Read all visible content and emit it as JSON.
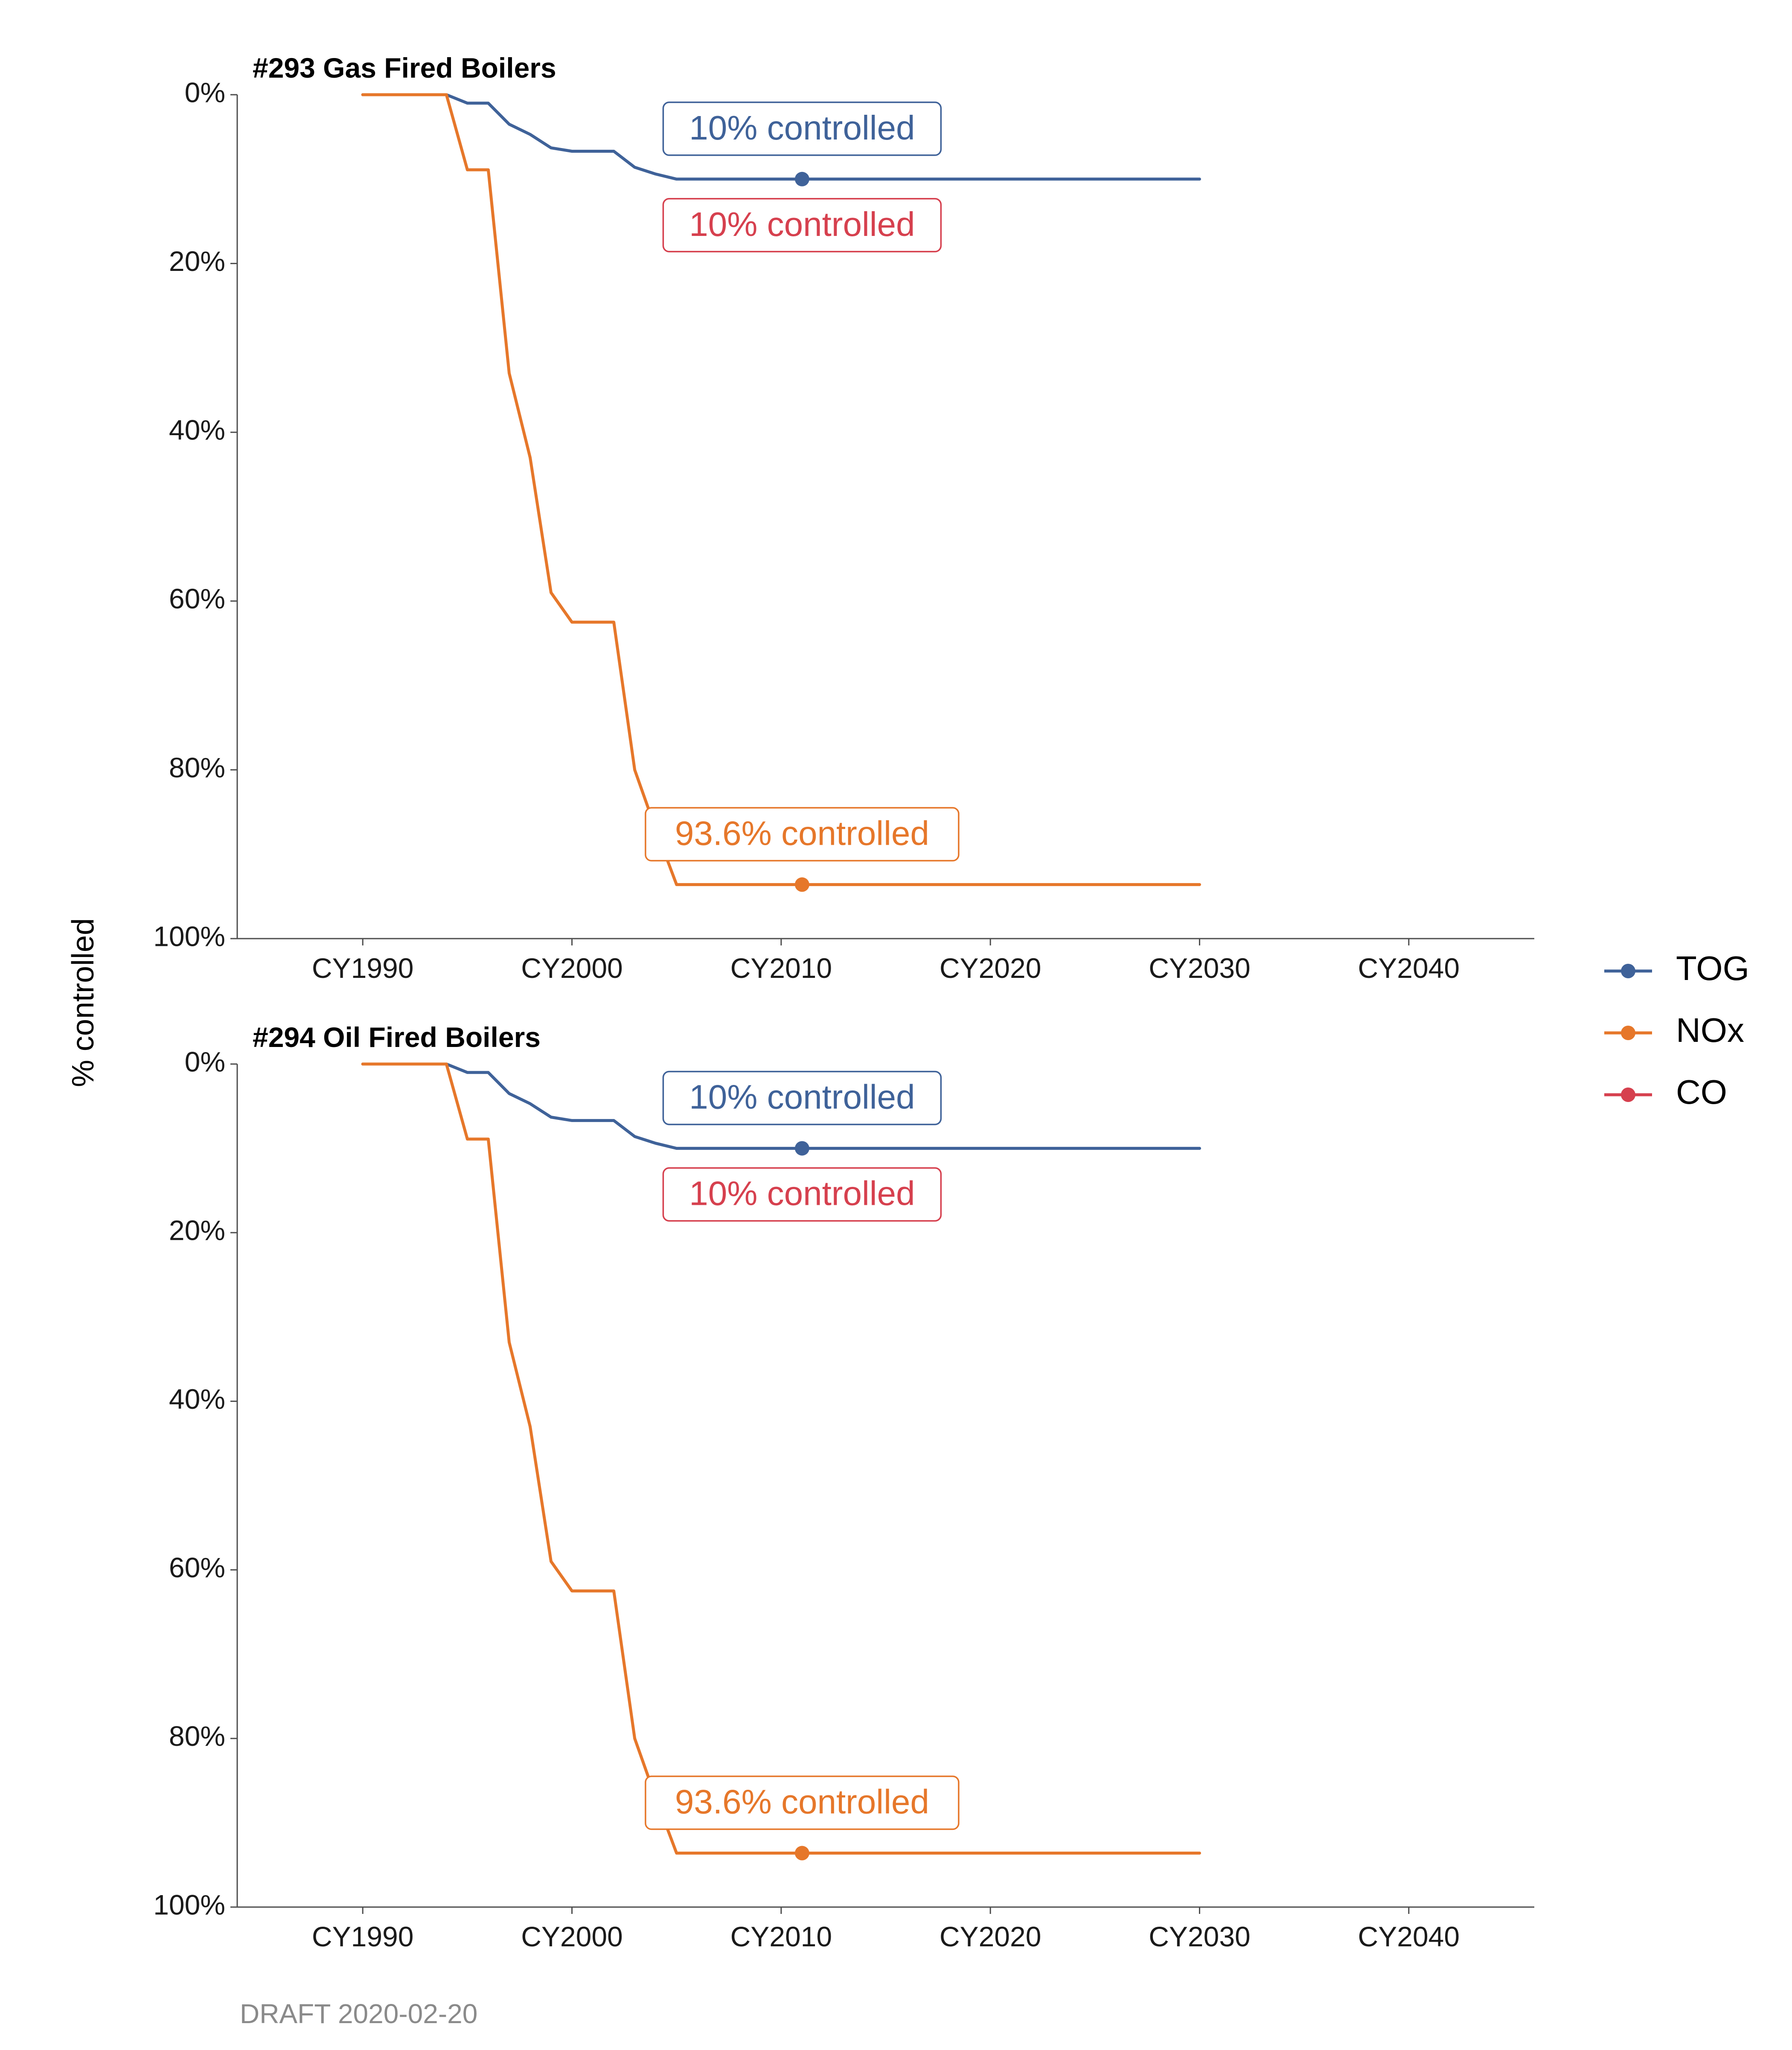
{
  "chart_data": {
    "type": "line",
    "ylabel": "% controlled",
    "caption": "DRAFT 2020-02-20",
    "x_tick_labels": [
      "CY1990",
      "CY2000",
      "CY2010",
      "CY2020",
      "CY2030",
      "CY2040"
    ],
    "y_tick_labels": [
      "0%",
      "20%",
      "40%",
      "60%",
      "80%",
      "100%"
    ],
    "xlim": [
      1984,
      2046
    ],
    "ylim": [
      0,
      100
    ],
    "y_reversed": true,
    "grid": false,
    "legend_position": "right",
    "legend": [
      {
        "name": "TOG",
        "color": "#3f6299"
      },
      {
        "name": "NOx",
        "color": "#e6772a"
      },
      {
        "name": "CO",
        "color": "#d6404e"
      }
    ],
    "panels": [
      {
        "title": "#293 Gas Fired Boilers",
        "series": [
          {
            "name": "TOG",
            "color": "#3f6299",
            "x": [
              1990,
              1994,
              1995,
              1996,
              1997,
              1998,
              1999,
              2000,
              2001,
              2002,
              2003,
              2004,
              2005,
              2010,
              2015,
              2020,
              2025,
              2030
            ],
            "y": [
              0,
              0,
              1,
              1,
              3.5,
              4.7,
              6.3,
              6.7,
              6.7,
              6.7,
              8.6,
              9.4,
              10,
              10,
              10,
              10,
              10,
              10
            ]
          },
          {
            "name": "NOx",
            "color": "#e6772a",
            "x": [
              1990,
              1994,
              1995,
              1996,
              1997,
              1998,
              1999,
              2000,
              2001,
              2002,
              2003,
              2004,
              2005,
              2010,
              2015,
              2020,
              2025,
              2030
            ],
            "y": [
              0,
              0,
              8.9,
              8.9,
              33,
              43,
              59,
              62.5,
              62.5,
              62.5,
              80,
              87,
              93.6,
              93.6,
              93.6,
              93.6,
              93.6,
              93.6
            ]
          }
        ],
        "markers": [
          {
            "series": "TOG",
            "x": 2011,
            "y": 10
          },
          {
            "series": "NOx",
            "x": 2011,
            "y": 93.6
          }
        ],
        "annotations": [
          {
            "text": "10% controlled",
            "color": "#3f6299",
            "x": 2011,
            "y": 10,
            "placement": "above"
          },
          {
            "text": "10% controlled",
            "color": "#d6404e",
            "x": 2011,
            "y": 10,
            "placement": "below"
          },
          {
            "text": "93.6% controlled",
            "color": "#e6772a",
            "x": 2011,
            "y": 93.6,
            "placement": "above"
          }
        ]
      },
      {
        "title": "#294 Oil Fired Boilers",
        "series": [
          {
            "name": "TOG",
            "color": "#3f6299",
            "x": [
              1990,
              1994,
              1995,
              1996,
              1997,
              1998,
              1999,
              2000,
              2001,
              2002,
              2003,
              2004,
              2005,
              2010,
              2015,
              2020,
              2025,
              2030
            ],
            "y": [
              0,
              0,
              1,
              1,
              3.5,
              4.7,
              6.3,
              6.7,
              6.7,
              6.7,
              8.6,
              9.4,
              10,
              10,
              10,
              10,
              10,
              10
            ]
          },
          {
            "name": "NOx",
            "color": "#e6772a",
            "x": [
              1990,
              1994,
              1995,
              1996,
              1997,
              1998,
              1999,
              2000,
              2001,
              2002,
              2003,
              2004,
              2005,
              2010,
              2015,
              2020,
              2025,
              2030
            ],
            "y": [
              0,
              0,
              8.9,
              8.9,
              33,
              43,
              59,
              62.5,
              62.5,
              62.5,
              80,
              87,
              93.6,
              93.6,
              93.6,
              93.6,
              93.6,
              93.6
            ]
          }
        ],
        "markers": [
          {
            "series": "TOG",
            "x": 2011,
            "y": 10
          },
          {
            "series": "NOx",
            "x": 2011,
            "y": 93.6
          }
        ],
        "annotations": [
          {
            "text": "10% controlled",
            "color": "#3f6299",
            "x": 2011,
            "y": 10,
            "placement": "above"
          },
          {
            "text": "10% controlled",
            "color": "#d6404e",
            "x": 2011,
            "y": 10,
            "placement": "below"
          },
          {
            "text": "93.6% controlled",
            "color": "#e6772a",
            "x": 2011,
            "y": 93.6,
            "placement": "above"
          }
        ]
      }
    ]
  }
}
